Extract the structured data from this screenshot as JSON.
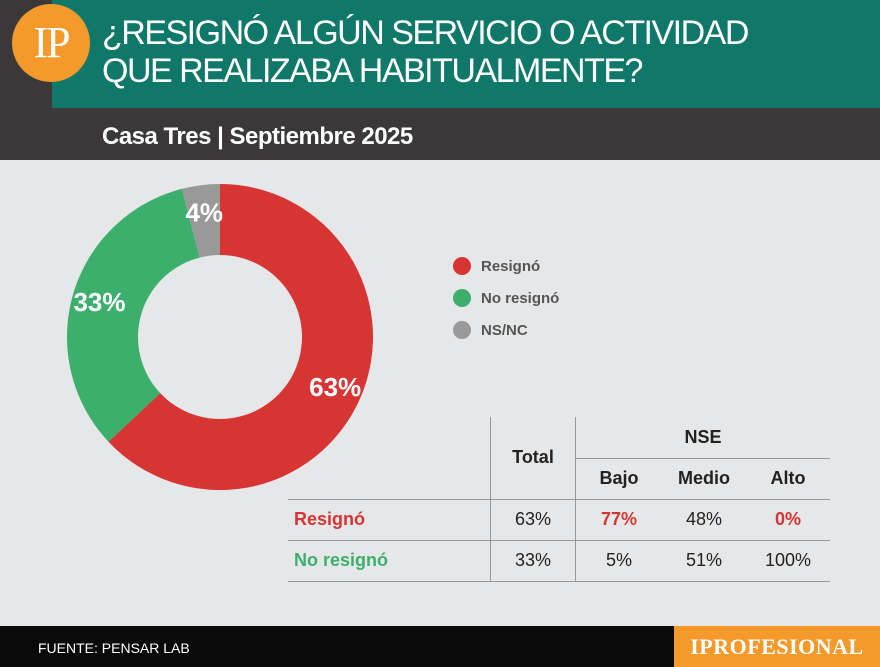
{
  "header": {
    "logo_text": "IP",
    "title_line1": "¿RESIGNÓ ALGÚN SERVICIO O ACTIVIDAD",
    "title_line2": "QUE REALIZABA HABITUALMENTE?",
    "subtitle": "Casa Tres | Septiembre 2025"
  },
  "colors": {
    "resigno": "#d73434",
    "no_resigno": "#3daf6c",
    "nsnc": "#999999",
    "teal": "#0f7868",
    "orange": "#f39a2b"
  },
  "chart_data": {
    "type": "pie",
    "variant": "donut",
    "title": "¿RESIGNÓ ALGÚN SERVICIO O ACTIVIDAD QUE REALIZABA HABITUALMENTE?",
    "categories": [
      "Resignó",
      "No resignó",
      "NS/NC"
    ],
    "values": [
      63,
      33,
      4
    ],
    "labels": [
      "63%",
      "33%",
      "4%"
    ],
    "colors": [
      "#d73434",
      "#3daf6c",
      "#999999"
    ],
    "legend": "right"
  },
  "legend": [
    {
      "label": "Resignó",
      "color": "#d73434"
    },
    {
      "label": "No resignó",
      "color": "#3daf6c"
    },
    {
      "label": "NS/NC",
      "color": "#999999"
    }
  ],
  "table": {
    "total_header": "Total",
    "group_header": "NSE",
    "subheaders": [
      "Bajo",
      "Medio",
      "Alto"
    ],
    "rows": [
      {
        "label": "Resignó",
        "total": "63%",
        "bajo": "77%",
        "medio": "48%",
        "alto": "0%"
      },
      {
        "label": "No resignó",
        "total": "33%",
        "bajo": "5%",
        "medio": "51%",
        "alto": "100%"
      }
    ]
  },
  "footer": {
    "source": "FUENTE: PENSAR LAB",
    "brand": "IPROFESIONAL"
  }
}
